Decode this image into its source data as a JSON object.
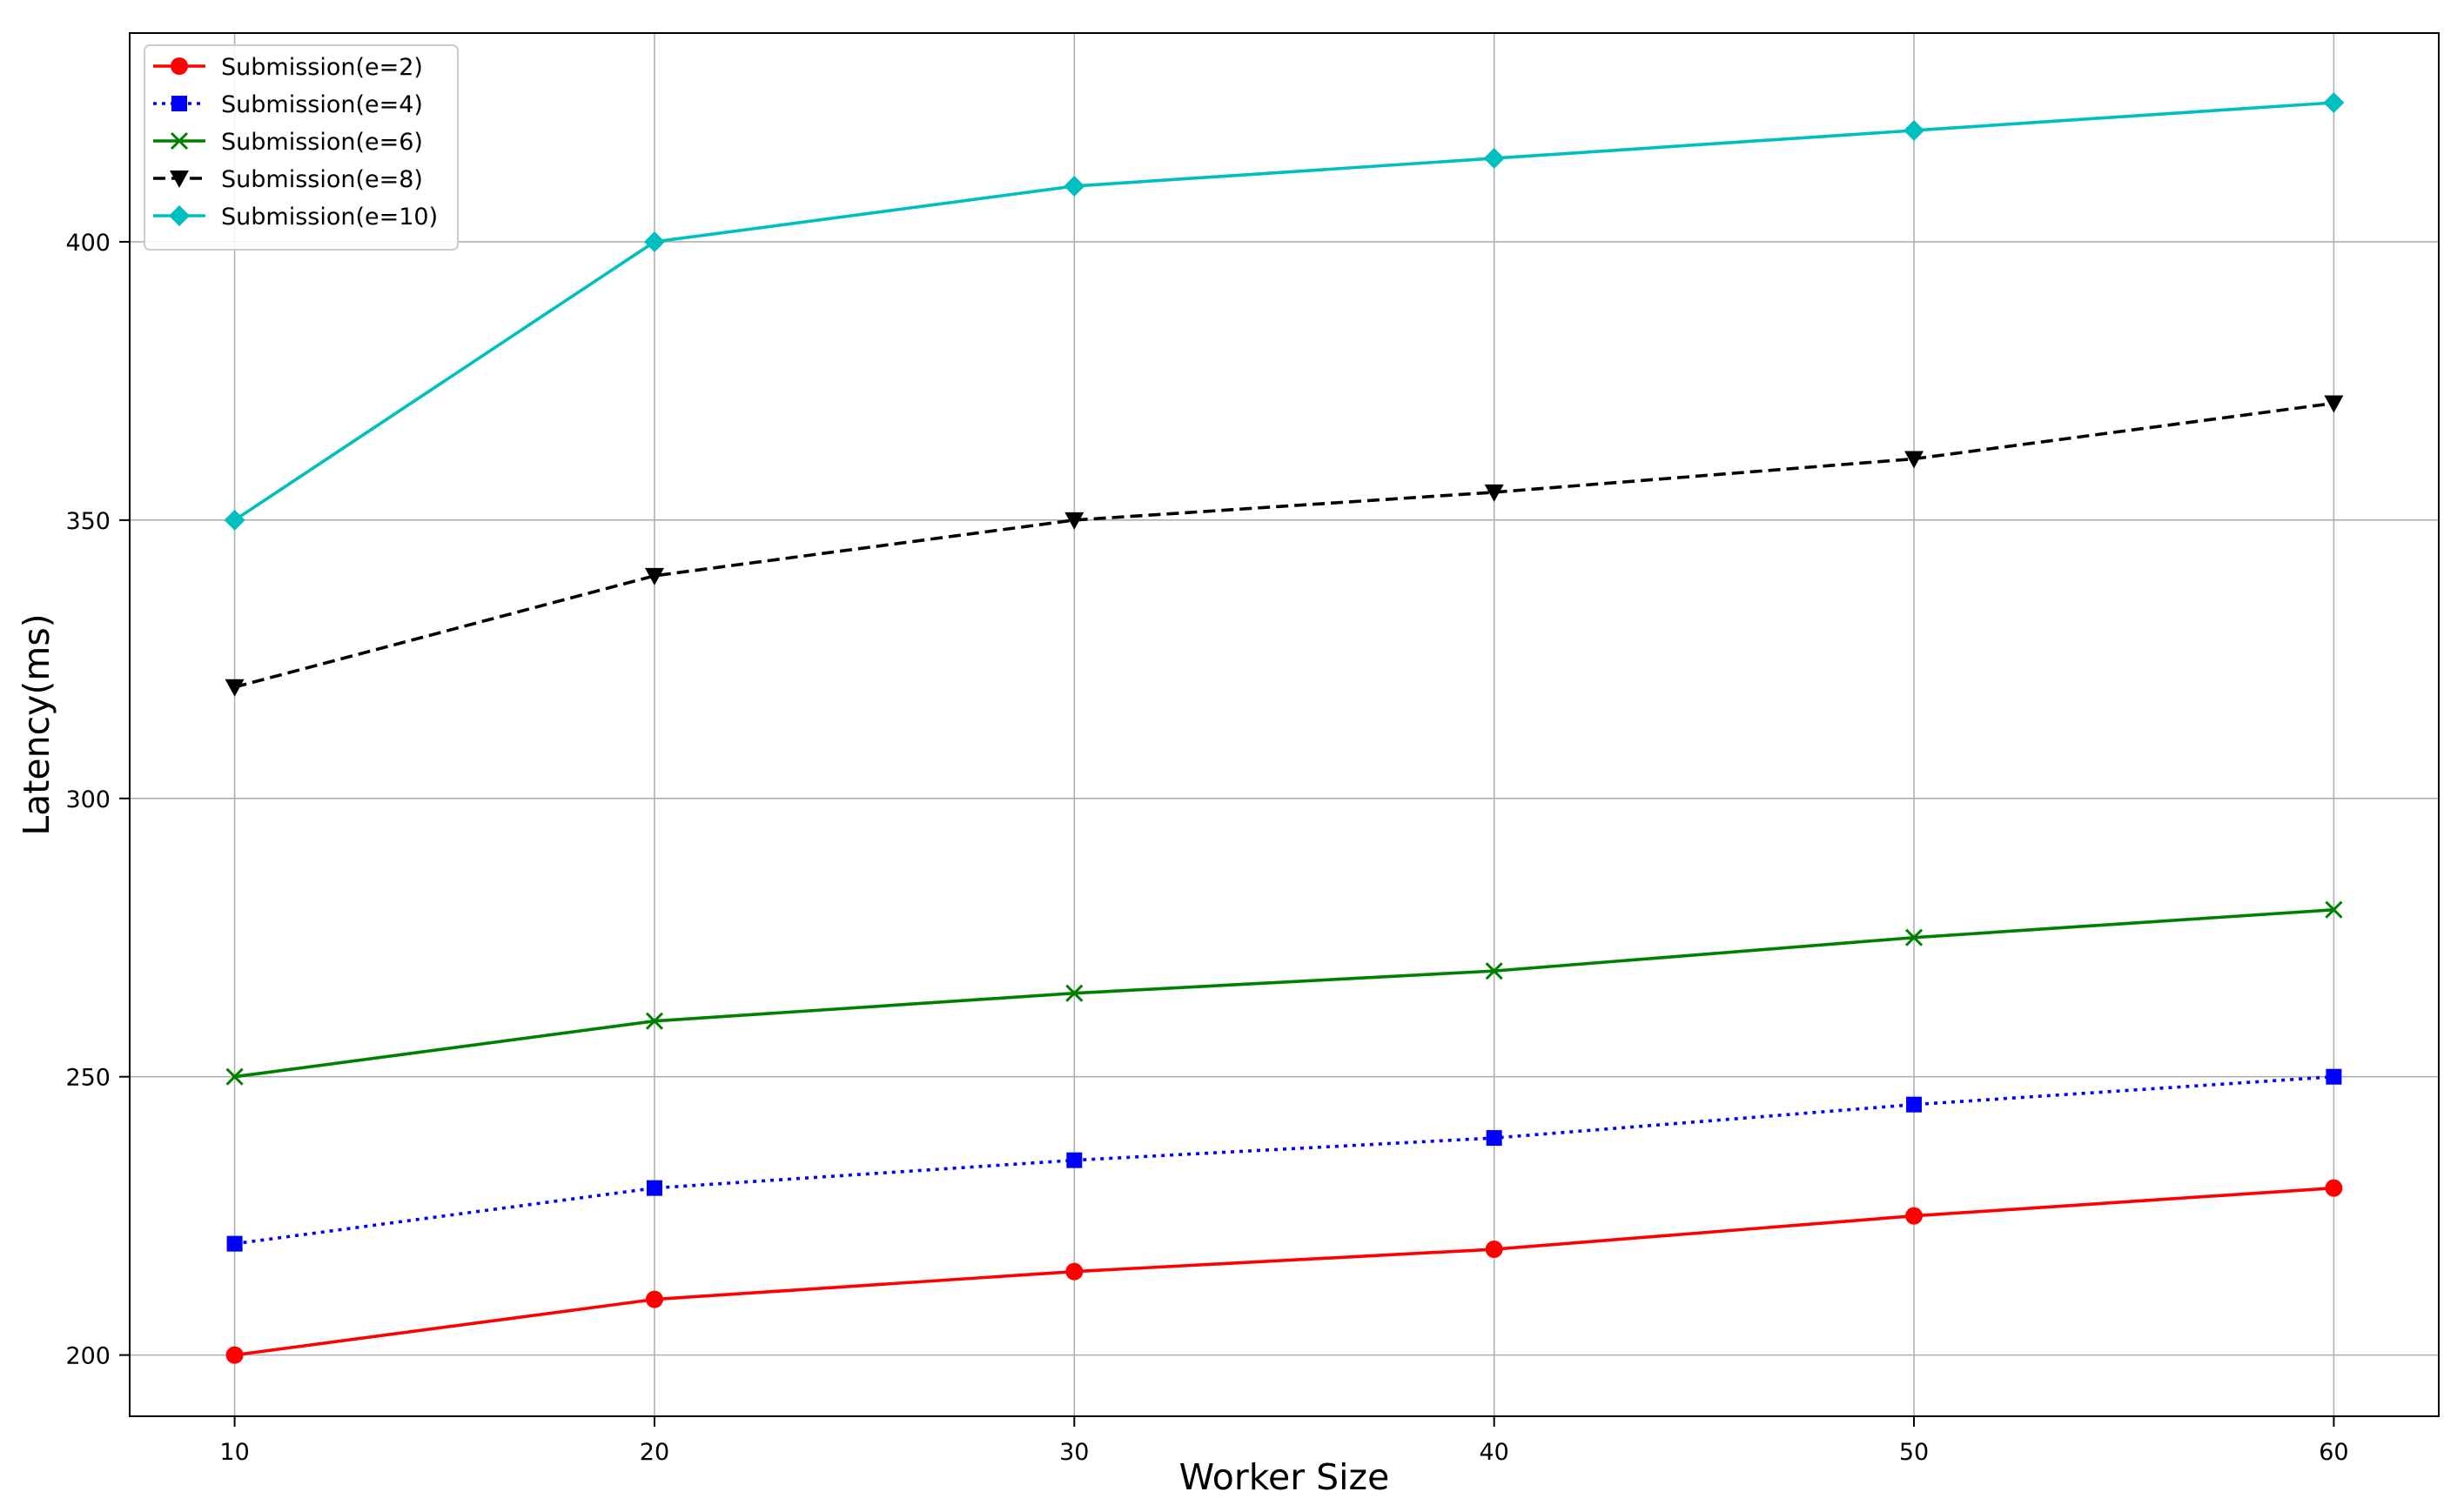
{
  "chart_data": {
    "type": "line",
    "title": "",
    "xlabel": "Worker Size",
    "ylabel": "Latency(ms)",
    "x": [
      10,
      20,
      30,
      40,
      50,
      60
    ],
    "xticks": [
      "10",
      "20",
      "30",
      "40",
      "50",
      "60"
    ],
    "yticks": [
      "200",
      "250",
      "300",
      "350",
      "400"
    ],
    "xlim": [
      7.5,
      62.5
    ],
    "ylim": [
      189,
      437.5
    ],
    "grid": true,
    "legend_position": "top-left",
    "series": [
      {
        "name": "Submission(e=2)",
        "values": [
          200,
          210,
          215,
          219,
          225,
          230
        ],
        "color": "#ff0000",
        "line_style": "solid",
        "marker": "circle"
      },
      {
        "name": "Submission(e=4)",
        "values": [
          220,
          230,
          235,
          239,
          245,
          250
        ],
        "color": "#0000ff",
        "line_style": "dotted",
        "marker": "square"
      },
      {
        "name": "Submission(e=6)",
        "values": [
          250,
          260,
          265,
          269,
          275,
          280
        ],
        "color": "#008000",
        "line_style": "solid",
        "marker": "x"
      },
      {
        "name": "Submission(e=8)",
        "values": [
          320,
          340,
          350,
          355,
          361,
          371
        ],
        "color": "#000000",
        "line_style": "dashed",
        "marker": "triangle-down"
      },
      {
        "name": "Submission(e=10)",
        "values": [
          350,
          400,
          410,
          415,
          420,
          425
        ],
        "color": "#00bfbf",
        "line_style": "solid",
        "marker": "diamond"
      }
    ]
  }
}
